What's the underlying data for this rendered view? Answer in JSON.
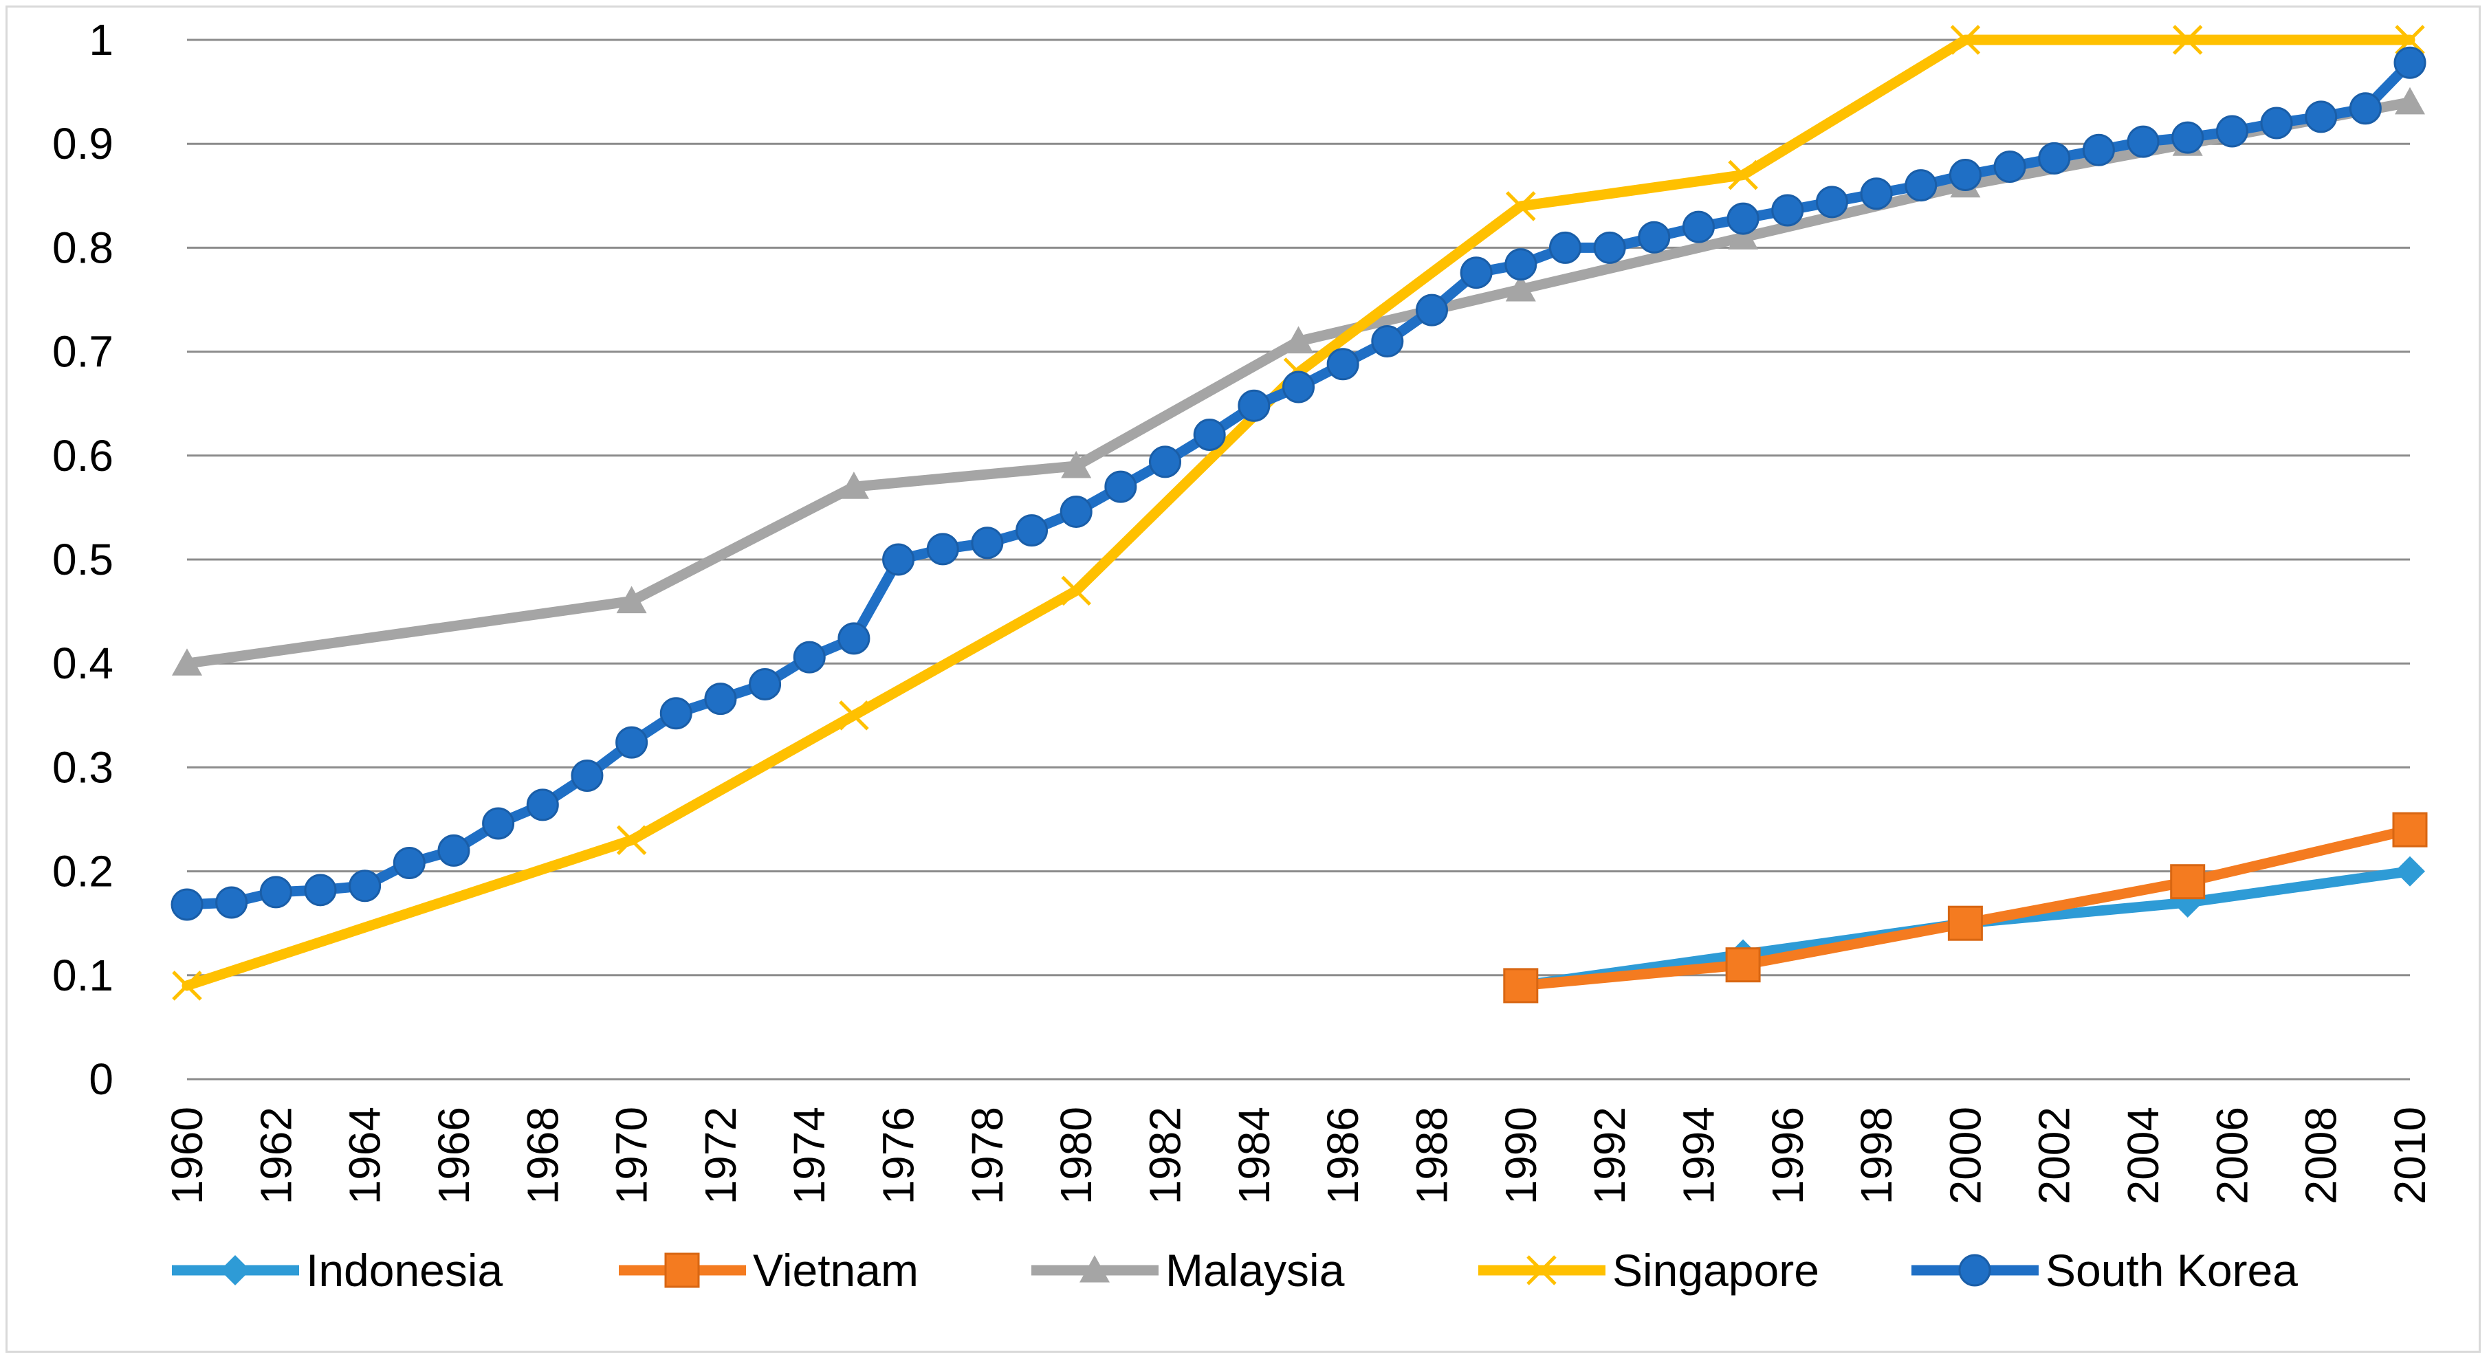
{
  "chart_data": {
    "type": "line",
    "title": "",
    "xlabel": "",
    "ylabel": "",
    "xlim": [
      1960,
      2010
    ],
    "ylim": [
      0,
      1
    ],
    "yticks": [
      "0",
      "0.1",
      "0.2",
      "0.3",
      "0.4",
      "0.5",
      "0.6",
      "0.7",
      "0.8",
      "0.9",
      "1"
    ],
    "xticks": [
      "1960",
      "1962",
      "1964",
      "1966",
      "1968",
      "1970",
      "1972",
      "1974",
      "1976",
      "1978",
      "1980",
      "1982",
      "1984",
      "1986",
      "1988",
      "1990",
      "1992",
      "1994",
      "1996",
      "1998",
      "2000",
      "2002",
      "2004",
      "2006",
      "2008",
      "2010"
    ],
    "grid": "horizontal",
    "legend_position": "bottom",
    "series": [
      {
        "name": "Indonesia",
        "color": "#2e9bd6",
        "marker": "diamond",
        "x": [
          1990,
          1995,
          2000,
          2005,
          2010
        ],
        "values": [
          0.09,
          0.12,
          0.15,
          0.17,
          0.2
        ]
      },
      {
        "name": "Vietnam",
        "color": "#f47b20",
        "marker": "square",
        "x": [
          1990,
          1995,
          2000,
          2005,
          2010
        ],
        "values": [
          0.09,
          0.11,
          0.15,
          0.19,
          0.24
        ]
      },
      {
        "name": "Malaysia",
        "color": "#a5a5a5",
        "marker": "triangle",
        "x": [
          1960,
          1970,
          1975,
          1980,
          1985,
          1990,
          1995,
          2000,
          2005,
          2010
        ],
        "values": [
          0.4,
          0.46,
          0.57,
          0.59,
          0.71,
          0.76,
          0.81,
          0.86,
          0.9,
          0.94
        ]
      },
      {
        "name": "Singapore",
        "color": "#ffc000",
        "marker": "x",
        "x": [
          1960,
          1970,
          1975,
          1980,
          1985,
          1990,
          1995,
          2000,
          2005,
          2010
        ],
        "values": [
          0.09,
          0.23,
          0.35,
          0.47,
          0.68,
          0.84,
          0.87,
          1.0,
          1.0,
          1.0
        ]
      },
      {
        "name": "South Korea",
        "color": "#1f6fc5",
        "marker": "circle",
        "x": [
          1960,
          1961,
          1962,
          1963,
          1964,
          1965,
          1966,
          1967,
          1968,
          1969,
          1970,
          1971,
          1972,
          1973,
          1974,
          1975,
          1976,
          1977,
          1978,
          1979,
          1980,
          1981,
          1982,
          1983,
          1984,
          1985,
          1986,
          1987,
          1988,
          1989,
          1990,
          1991,
          1992,
          1993,
          1994,
          1995,
          1996,
          1997,
          1998,
          1999,
          2000,
          2001,
          2002,
          2003,
          2004,
          2005,
          2006,
          2007,
          2008,
          2009,
          2010
        ],
        "values": [
          0.168,
          0.17,
          0.18,
          0.182,
          0.186,
          0.208,
          0.22,
          0.246,
          0.264,
          0.292,
          0.324,
          0.352,
          0.366,
          0.38,
          0.406,
          0.424,
          0.5,
          0.51,
          0.516,
          0.528,
          0.546,
          0.57,
          0.594,
          0.62,
          0.648,
          0.666,
          0.688,
          0.71,
          0.74,
          0.776,
          0.784,
          0.8,
          0.8,
          0.81,
          0.82,
          0.828,
          0.836,
          0.844,
          0.852,
          0.86,
          0.87,
          0.878,
          0.886,
          0.894,
          0.902,
          0.906,
          0.912,
          0.92,
          0.926,
          0.934,
          0.978
        ]
      }
    ]
  }
}
